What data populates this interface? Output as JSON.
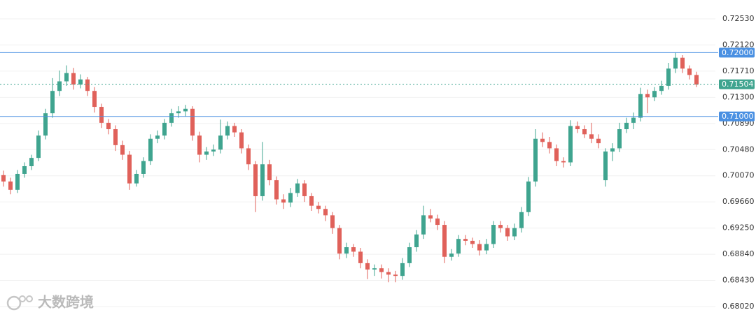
{
  "chart_data": {
    "type": "candlestick",
    "watermark": "大数跨境",
    "up_color": "#3fa48f",
    "down_color": "#e0615a",
    "grid": true,
    "ylim": [
      0.67856,
      0.72825
    ],
    "yticks": [
      {
        "value": 0.6802,
        "label": "0.68020"
      },
      {
        "value": 0.6843,
        "label": "0.68430"
      },
      {
        "value": 0.6884,
        "label": "0.68840"
      },
      {
        "value": 0.6925,
        "label": "0.69250"
      },
      {
        "value": 0.6966,
        "label": "0.69660"
      },
      {
        "value": 0.7007,
        "label": "0.70070"
      },
      {
        "value": 0.7048,
        "label": "0.70480"
      },
      {
        "value": 0.7089,
        "label": "0.70890"
      },
      {
        "value": 0.713,
        "label": "0.71300"
      },
      {
        "value": 0.7171,
        "label": "0.71710"
      },
      {
        "value": 0.7212,
        "label": "0.72120"
      },
      {
        "value": 0.7253,
        "label": "0.72530"
      }
    ],
    "price_lines": [
      {
        "value": 0.72,
        "label": "0.72000",
        "color": "#4a90e2",
        "style": "solid"
      },
      {
        "value": 0.71,
        "label": "0.71000",
        "color": "#4a90e2",
        "style": "solid"
      },
      {
        "value": 0.71504,
        "label": "0.71504",
        "color": "#3fa48f",
        "style": "dotted"
      }
    ],
    "ohlc": [
      [
        0.7008,
        0.7015,
        0.699,
        0.6998
      ],
      [
        0.6998,
        0.7004,
        0.6978,
        0.6985
      ],
      [
        0.6985,
        0.7016,
        0.698,
        0.701
      ],
      [
        0.701,
        0.7028,
        0.7004,
        0.7022
      ],
      [
        0.7022,
        0.704,
        0.7016,
        0.7035
      ],
      [
        0.7035,
        0.7078,
        0.703,
        0.707
      ],
      [
        0.707,
        0.7112,
        0.7064,
        0.7105
      ],
      [
        0.7105,
        0.716,
        0.7098,
        0.714
      ],
      [
        0.714,
        0.7172,
        0.7132,
        0.7155
      ],
      [
        0.7155,
        0.718,
        0.7148,
        0.7168
      ],
      [
        0.7168,
        0.7176,
        0.7142,
        0.715
      ],
      [
        0.715,
        0.7166,
        0.7144,
        0.7158
      ],
      [
        0.7158,
        0.7162,
        0.7132,
        0.714
      ],
      [
        0.714,
        0.7146,
        0.7106,
        0.7115
      ],
      [
        0.7115,
        0.712,
        0.7082,
        0.709
      ],
      [
        0.709,
        0.7096,
        0.7072,
        0.708
      ],
      [
        0.708,
        0.7086,
        0.7046,
        0.7055
      ],
      [
        0.7055,
        0.7062,
        0.7032,
        0.704
      ],
      [
        0.704,
        0.7046,
        0.6985,
        0.6995
      ],
      [
        0.6995,
        0.7016,
        0.699,
        0.701
      ],
      [
        0.701,
        0.7036,
        0.7004,
        0.703
      ],
      [
        0.703,
        0.7072,
        0.7024,
        0.7065
      ],
      [
        0.7065,
        0.7078,
        0.7058,
        0.707
      ],
      [
        0.707,
        0.7096,
        0.7064,
        0.709
      ],
      [
        0.709,
        0.7112,
        0.7084,
        0.7105
      ],
      [
        0.7105,
        0.7116,
        0.7098,
        0.7108
      ],
      [
        0.7108,
        0.7118,
        0.71,
        0.7112
      ],
      [
        0.7112,
        0.7116,
        0.7062,
        0.707
      ],
      [
        0.707,
        0.7076,
        0.7028,
        0.704
      ],
      [
        0.704,
        0.7052,
        0.7032,
        0.7045
      ],
      [
        0.7045,
        0.7056,
        0.7038,
        0.7048
      ],
      [
        0.7048,
        0.7095,
        0.7042,
        0.707
      ],
      [
        0.707,
        0.7092,
        0.7064,
        0.7085
      ],
      [
        0.7085,
        0.709,
        0.7068,
        0.7075
      ],
      [
        0.7075,
        0.708,
        0.7042,
        0.705
      ],
      [
        0.705,
        0.7056,
        0.7016,
        0.7025
      ],
      [
        0.7025,
        0.703,
        0.695,
        0.6975
      ],
      [
        0.6975,
        0.706,
        0.6968,
        0.7025
      ],
      [
        0.7025,
        0.7032,
        0.6992,
        0.7
      ],
      [
        0.7,
        0.7006,
        0.6962,
        0.697
      ],
      [
        0.697,
        0.6978,
        0.6955,
        0.6965
      ],
      [
        0.6965,
        0.6988,
        0.6958,
        0.698
      ],
      [
        0.698,
        0.7002,
        0.6974,
        0.6995
      ],
      [
        0.6995,
        0.7,
        0.6966,
        0.6975
      ],
      [
        0.6975,
        0.698,
        0.6952,
        0.696
      ],
      [
        0.696,
        0.6966,
        0.6948,
        0.6955
      ],
      [
        0.6955,
        0.696,
        0.6936,
        0.6945
      ],
      [
        0.6945,
        0.695,
        0.6916,
        0.6925
      ],
      [
        0.6925,
        0.693,
        0.6876,
        0.6885
      ],
      [
        0.6885,
        0.6902,
        0.6878,
        0.6895
      ],
      [
        0.6895,
        0.69,
        0.688,
        0.6888
      ],
      [
        0.6888,
        0.6894,
        0.6862,
        0.687
      ],
      [
        0.687,
        0.6876,
        0.6845,
        0.686
      ],
      [
        0.686,
        0.6868,
        0.685,
        0.6862
      ],
      [
        0.6862,
        0.6868,
        0.6846,
        0.6856
      ],
      [
        0.6856,
        0.6862,
        0.684,
        0.6852
      ],
      [
        0.6852,
        0.6858,
        0.684,
        0.685
      ],
      [
        0.685,
        0.6878,
        0.6844,
        0.687
      ],
      [
        0.687,
        0.6902,
        0.6864,
        0.6895
      ],
      [
        0.6895,
        0.6922,
        0.6888,
        0.6915
      ],
      [
        0.6915,
        0.696,
        0.6908,
        0.6945
      ],
      [
        0.6945,
        0.6955,
        0.6934,
        0.694
      ],
      [
        0.694,
        0.6946,
        0.6922,
        0.693
      ],
      [
        0.693,
        0.6936,
        0.687,
        0.688
      ],
      [
        0.688,
        0.6892,
        0.6874,
        0.6885
      ],
      [
        0.6885,
        0.6914,
        0.688,
        0.6908
      ],
      [
        0.6908,
        0.6914,
        0.6898,
        0.6905
      ],
      [
        0.6905,
        0.691,
        0.6894,
        0.69
      ],
      [
        0.69,
        0.6906,
        0.6882,
        0.689
      ],
      [
        0.689,
        0.6908,
        0.6884,
        0.69
      ],
      [
        0.69,
        0.6936,
        0.6894,
        0.693
      ],
      [
        0.693,
        0.6936,
        0.6918,
        0.6925
      ],
      [
        0.6925,
        0.693,
        0.6905,
        0.6912
      ],
      [
        0.6912,
        0.6932,
        0.6906,
        0.6925
      ],
      [
        0.6925,
        0.6958,
        0.6918,
        0.695
      ],
      [
        0.695,
        0.7005,
        0.6944,
        0.6998
      ],
      [
        0.6998,
        0.708,
        0.699,
        0.7065
      ],
      [
        0.7065,
        0.7075,
        0.7052,
        0.706
      ],
      [
        0.706,
        0.7068,
        0.7042,
        0.705
      ],
      [
        0.705,
        0.7056,
        0.7022,
        0.703
      ],
      [
        0.703,
        0.7036,
        0.702,
        0.7028
      ],
      [
        0.7028,
        0.7094,
        0.7022,
        0.7085
      ],
      [
        0.7085,
        0.7092,
        0.7074,
        0.708
      ],
      [
        0.708,
        0.7086,
        0.7066,
        0.7072
      ],
      [
        0.7072,
        0.709,
        0.7058,
        0.7065
      ],
      [
        0.7065,
        0.7072,
        0.705,
        0.7058
      ],
      [
        0.7,
        0.705,
        0.699,
        0.7045
      ],
      [
        0.7045,
        0.7058,
        0.703,
        0.705
      ],
      [
        0.705,
        0.709,
        0.7044,
        0.708
      ],
      [
        0.708,
        0.7098,
        0.7074,
        0.709
      ],
      [
        0.709,
        0.7106,
        0.708,
        0.7098
      ],
      [
        0.7098,
        0.7145,
        0.7092,
        0.7135
      ],
      [
        0.7135,
        0.7142,
        0.7105,
        0.713
      ],
      [
        0.713,
        0.7146,
        0.7124,
        0.714
      ],
      [
        0.714,
        0.7156,
        0.7134,
        0.7148
      ],
      [
        0.7148,
        0.7184,
        0.7142,
        0.7175
      ],
      [
        0.7175,
        0.72,
        0.7168,
        0.7192
      ],
      [
        0.7192,
        0.7196,
        0.7168,
        0.7175
      ],
      [
        0.7175,
        0.718,
        0.7158,
        0.7165
      ],
      [
        0.7165,
        0.717,
        0.7146,
        0.715
      ]
    ]
  }
}
